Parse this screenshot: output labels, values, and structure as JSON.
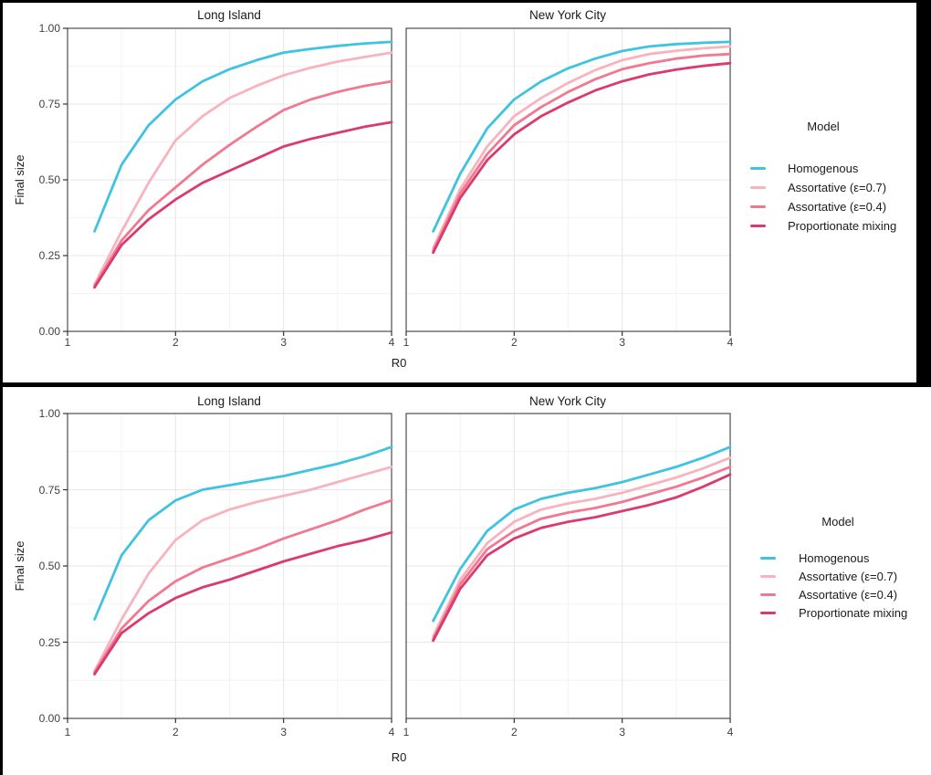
{
  "page": {
    "background": "#000000",
    "panel_border_color": "#4d4d4d",
    "grid_major_color": "#e7e7e7",
    "grid_minor_color": "#f3f3f3",
    "tick_color": "#333333"
  },
  "chart_data": [
    {
      "type": "line",
      "title": "",
      "xlabel": "R0",
      "ylabel": "Final size",
      "xlim": [
        1,
        4
      ],
      "ylim": [
        0.0,
        1.0
      ],
      "xticks": [
        "1",
        "2",
        "3",
        "4"
      ],
      "yticks": [
        "0.00",
        "0.25",
        "0.50",
        "0.75",
        "1.00"
      ],
      "grid": "major+minor",
      "x": [
        1.25,
        1.5,
        1.75,
        2,
        2.25,
        2.5,
        2.75,
        3,
        3.25,
        3.5,
        3.75,
        4
      ],
      "legend": {
        "title": "Model",
        "position": "right",
        "entries": [
          {
            "label": "Homogenous",
            "color": "#3EC3E0"
          },
          {
            "label": "Assortative (ε=0.7)",
            "color": "#F7B3BE"
          },
          {
            "label": "Assortative (ε=0.4)",
            "color": "#F2788F"
          },
          {
            "label": "Proportionate mixing",
            "color": "#DB3A6E"
          }
        ]
      },
      "facets": [
        {
          "label": "Long Island",
          "series": [
            {
              "name": "Homogenous",
              "color": "#3EC3E0",
              "values": [
                0.33,
                0.55,
                0.68,
                0.765,
                0.825,
                0.865,
                0.895,
                0.92,
                0.932,
                0.942,
                0.95,
                0.955
              ]
            },
            {
              "name": "Assortative (ε=0.7)",
              "color": "#F7B3BE",
              "values": [
                0.155,
                0.33,
                0.49,
                0.63,
                0.71,
                0.77,
                0.81,
                0.845,
                0.87,
                0.89,
                0.905,
                0.92
              ]
            },
            {
              "name": "Assortative (ε=0.4)",
              "color": "#F2788F",
              "values": [
                0.15,
                0.3,
                0.4,
                0.475,
                0.55,
                0.615,
                0.675,
                0.73,
                0.765,
                0.79,
                0.81,
                0.825
              ]
            },
            {
              "name": "Proportionate mixing",
              "color": "#DB3A6E",
              "values": [
                0.145,
                0.285,
                0.37,
                0.435,
                0.49,
                0.53,
                0.57,
                0.61,
                0.635,
                0.655,
                0.675,
                0.69
              ]
            }
          ]
        },
        {
          "label": "New York City",
          "series": [
            {
              "name": "Homogenous",
              "color": "#3EC3E0",
              "values": [
                0.33,
                0.52,
                0.67,
                0.765,
                0.825,
                0.868,
                0.9,
                0.925,
                0.94,
                0.948,
                0.952,
                0.955
              ]
            },
            {
              "name": "Assortative (ε=0.7)",
              "color": "#F7B3BE",
              "values": [
                0.275,
                0.47,
                0.61,
                0.71,
                0.77,
                0.82,
                0.862,
                0.895,
                0.915,
                0.926,
                0.934,
                0.94
              ]
            },
            {
              "name": "Assortative (ε=0.4)",
              "color": "#F2788F",
              "values": [
                0.265,
                0.455,
                0.585,
                0.68,
                0.74,
                0.79,
                0.832,
                0.865,
                0.885,
                0.9,
                0.91,
                0.915
              ]
            },
            {
              "name": "Proportionate mixing",
              "color": "#DB3A6E",
              "values": [
                0.26,
                0.44,
                0.565,
                0.65,
                0.71,
                0.755,
                0.795,
                0.825,
                0.848,
                0.864,
                0.876,
                0.885
              ]
            }
          ]
        }
      ]
    },
    {
      "type": "line",
      "title": "",
      "xlabel": "R0",
      "ylabel": "Final size",
      "xlim": [
        1,
        4
      ],
      "ylim": [
        0.0,
        1.0
      ],
      "xticks": [
        "1",
        "2",
        "3",
        "4"
      ],
      "yticks": [
        "0.00",
        "0.25",
        "0.50",
        "0.75",
        "1.00"
      ],
      "grid": "major+minor",
      "x": [
        1.25,
        1.5,
        1.75,
        2,
        2.25,
        2.5,
        2.75,
        3,
        3.25,
        3.5,
        3.75,
        4
      ],
      "legend": {
        "title": "Model",
        "position": "right",
        "entries": [
          {
            "label": "Homogenous",
            "color": "#3EC3E0"
          },
          {
            "label": "Assortative (ε=0.7)",
            "color": "#F7B3BE"
          },
          {
            "label": "Assortative (ε=0.4)",
            "color": "#F2788F"
          },
          {
            "label": "Proportionate mixing",
            "color": "#DB3A6E"
          }
        ]
      },
      "facets": [
        {
          "label": "Long Island",
          "series": [
            {
              "name": "Homogenous",
              "color": "#3EC3E0",
              "values": [
                0.325,
                0.535,
                0.65,
                0.715,
                0.75,
                0.765,
                0.78,
                0.795,
                0.815,
                0.835,
                0.86,
                0.89
              ]
            },
            {
              "name": "Assortative (ε=0.7)",
              "color": "#F7B3BE",
              "values": [
                0.155,
                0.325,
                0.475,
                0.585,
                0.65,
                0.685,
                0.71,
                0.73,
                0.75,
                0.775,
                0.8,
                0.825
              ]
            },
            {
              "name": "Assortative (ε=0.4)",
              "color": "#F2788F",
              "values": [
                0.15,
                0.295,
                0.385,
                0.45,
                0.495,
                0.525,
                0.555,
                0.59,
                0.62,
                0.65,
                0.685,
                0.715
              ]
            },
            {
              "name": "Proportionate mixing",
              "color": "#DB3A6E",
              "values": [
                0.145,
                0.28,
                0.345,
                0.395,
                0.43,
                0.455,
                0.485,
                0.515,
                0.54,
                0.565,
                0.585,
                0.61
              ]
            }
          ]
        },
        {
          "label": "New York City",
          "series": [
            {
              "name": "Homogenous",
              "color": "#3EC3E0",
              "values": [
                0.32,
                0.49,
                0.615,
                0.685,
                0.72,
                0.74,
                0.755,
                0.775,
                0.8,
                0.825,
                0.855,
                0.89
              ]
            },
            {
              "name": "Assortative (ε=0.7)",
              "color": "#F7B3BE",
              "values": [
                0.27,
                0.455,
                0.575,
                0.645,
                0.685,
                0.705,
                0.72,
                0.74,
                0.765,
                0.79,
                0.82,
                0.855
              ]
            },
            {
              "name": "Assortative (ε=0.4)",
              "color": "#F2788F",
              "values": [
                0.26,
                0.44,
                0.555,
                0.615,
                0.655,
                0.675,
                0.69,
                0.71,
                0.735,
                0.76,
                0.79,
                0.825
              ]
            },
            {
              "name": "Proportionate mixing",
              "color": "#DB3A6E",
              "values": [
                0.255,
                0.425,
                0.535,
                0.59,
                0.625,
                0.645,
                0.66,
                0.68,
                0.7,
                0.725,
                0.76,
                0.8
              ]
            }
          ]
        }
      ]
    }
  ]
}
